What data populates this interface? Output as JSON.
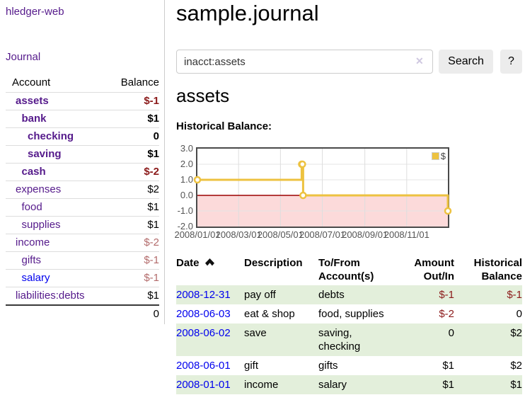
{
  "palette": {
    "link_visited": "#551a8b",
    "link_unvisited": "#0000ee",
    "negative_strong": "#8b1a1a",
    "negative_soft": "#b36b6b",
    "row_stripe_green": "#e3efdb",
    "chart_line": "#edc240",
    "chart_negative_fill": "#fcdada",
    "chart_zero_line": "#9b0000",
    "chart_grid": "#dedede"
  },
  "sidebar": {
    "brand": "hledger-web",
    "nav_journal": "Journal",
    "table": {
      "headers": {
        "account": "Account",
        "balance": "Balance"
      },
      "accounts": [
        {
          "name": "assets",
          "depth": 0,
          "bold": true,
          "balance": "$-1"
        },
        {
          "name": "bank",
          "depth": 1,
          "bold": true,
          "balance": "$1"
        },
        {
          "name": "checking",
          "depth": 2,
          "bold": true,
          "balance": "0"
        },
        {
          "name": "saving",
          "depth": 2,
          "bold": true,
          "balance": "$1"
        },
        {
          "name": "cash",
          "depth": 1,
          "bold": true,
          "balance": "$-2"
        },
        {
          "name": "expenses",
          "depth": 0,
          "bold": false,
          "balance": "$2"
        },
        {
          "name": "food",
          "depth": 1,
          "bold": false,
          "balance": "$1"
        },
        {
          "name": "supplies",
          "depth": 1,
          "bold": false,
          "balance": "$1"
        },
        {
          "name": "income",
          "depth": 0,
          "bold": false,
          "balance": "$-2"
        },
        {
          "name": "gifts",
          "depth": 1,
          "bold": false,
          "balance": "$-1"
        },
        {
          "name": "salary",
          "depth": 1,
          "bold": false,
          "balance": "$-1",
          "unvisited": true
        },
        {
          "name": "liabilities:debts",
          "depth": 0,
          "bold": false,
          "balance": "$1"
        }
      ],
      "total": "0"
    }
  },
  "header": {
    "title": "sample.journal"
  },
  "search": {
    "value": "inacct:assets",
    "clear_icon": "✕",
    "search_button": "Search",
    "help_button": "?"
  },
  "account_view": {
    "heading": "assets",
    "chart_title": "Historical Balance:"
  },
  "chart_data": {
    "type": "line",
    "step": true,
    "title": "Historical Balance:",
    "legend": [
      {
        "label": "$",
        "color": "#edc240"
      }
    ],
    "legend_position": "top-right",
    "x_range": [
      "2008-01-01",
      "2008-12-31"
    ],
    "y_range": [
      -2,
      3
    ],
    "grid": true,
    "negative_region_shaded": true,
    "y_ticks": [
      {
        "label": "3.0",
        "value": 3
      },
      {
        "label": "2.0",
        "value": 2
      },
      {
        "label": "1.0",
        "value": 1
      },
      {
        "label": "0.0",
        "value": 0
      },
      {
        "label": "-1.0",
        "value": -1
      },
      {
        "label": "-2.0",
        "value": -2
      }
    ],
    "x_ticks": [
      {
        "label": "2008/01/01",
        "date": "2008-01-01"
      },
      {
        "label": "2008/03/01",
        "date": "2008-03-01"
      },
      {
        "label": "2008/05/01",
        "date": "2008-05-01"
      },
      {
        "label": "2008/07/01",
        "date": "2008-07-01"
      },
      {
        "label": "2008/09/01",
        "date": "2008-09-01"
      },
      {
        "label": "2008/11/01",
        "date": "2008-11-01"
      }
    ],
    "series": [
      {
        "name": "$",
        "points": [
          {
            "date": "2008-01-01",
            "value": 1
          },
          {
            "date": "2008-06-01",
            "value": 2
          },
          {
            "date": "2008-06-02",
            "value": 2
          },
          {
            "date": "2008-06-03",
            "value": 0
          },
          {
            "date": "2008-12-31",
            "value": -1
          }
        ]
      }
    ]
  },
  "register": {
    "headers": {
      "date": "Date",
      "description": "Description",
      "tofrom_line1": "To/From",
      "tofrom_line2": "Account(s)",
      "amount_line1": "Amount",
      "amount_line2": "Out/In",
      "balance_line1": "Historical",
      "balance_line2": "Balance"
    },
    "rows": [
      {
        "date": "2008-12-31",
        "description": "pay off",
        "tofrom": "debts",
        "amount": "$-1",
        "balance": "$-1"
      },
      {
        "date": "2008-06-03",
        "description": "eat & shop",
        "tofrom": "food, supplies",
        "amount": "$-2",
        "balance": "0"
      },
      {
        "date": "2008-06-02",
        "description": "save",
        "tofrom": "saving, checking",
        "amount": "0",
        "balance": "$2"
      },
      {
        "date": "2008-06-01",
        "description": "gift",
        "tofrom": "gifts",
        "amount": "$1",
        "balance": "$2"
      },
      {
        "date": "2008-01-01",
        "description": "income",
        "tofrom": "salary",
        "amount": "$1",
        "balance": "$1"
      }
    ]
  }
}
